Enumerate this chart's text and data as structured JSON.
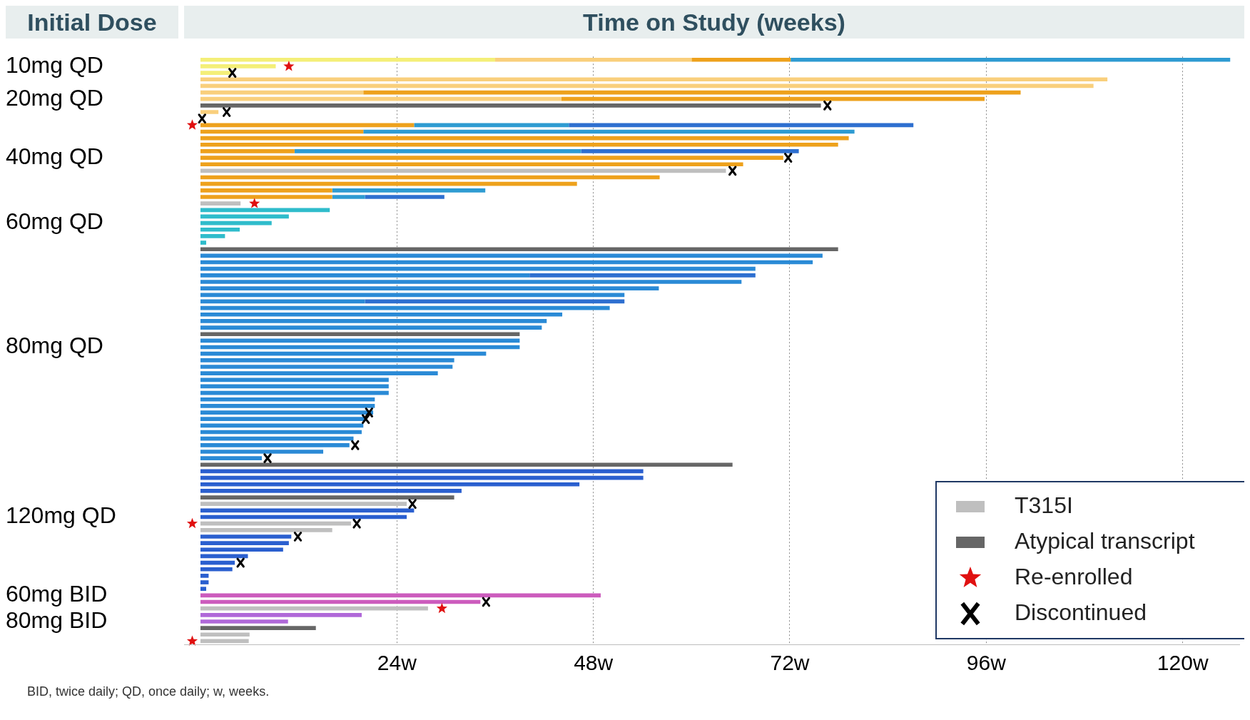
{
  "chart_data": {
    "type": "bar",
    "orientation": "horizontal",
    "stacked": true,
    "xlabel": "Time on Study (weeks)",
    "ylabel": "Initial Dose",
    "annotations": [
      "BID, twice daily; QD, once daily; w, weeks."
    ],
    "categories": [
      null,
      "10mg QD",
      null,
      null,
      null,
      null,
      "20mg QD",
      null,
      null,
      null,
      null,
      null,
      null,
      null,
      null,
      "40mg QD",
      null,
      null,
      null,
      null,
      null,
      null,
      null,
      null,
      null,
      "60mg QD",
      null,
      null,
      null,
      null,
      null,
      null,
      null,
      null,
      null,
      null,
      null,
      null,
      null,
      null,
      null,
      null,
      null,
      null,
      "80mg QD",
      null,
      null,
      null,
      null,
      null,
      null,
      null,
      null,
      null,
      null,
      null,
      null,
      null,
      null,
      null,
      null,
      null,
      null,
      null,
      null,
      null,
      null,
      null,
      null,
      null,
      "120mg QD",
      null,
      null,
      null,
      null,
      null,
      null,
      null,
      null,
      null,
      null,
      null,
      "60mg BID",
      null,
      null,
      null,
      "80mg BID",
      null,
      null,
      null
    ],
    "xlim": [
      -2,
      127
    ],
    "xticks": [
      {
        "value": 24,
        "label": "24w"
      },
      {
        "value": 48,
        "label": "48w"
      },
      {
        "value": 72,
        "label": "72w"
      },
      {
        "value": 96,
        "label": "96w"
      },
      {
        "value": 120,
        "label": "120w"
      }
    ],
    "grid": "x",
    "legend": "bottom right",
    "series": [
      {
        "name": "T315I",
        "color": "#bfbfbf",
        "values": [
          null,
          null,
          null,
          null,
          null,
          null,
          null,
          null,
          null,
          null,
          null,
          null,
          null,
          null,
          null,
          null,
          null,
          64.2,
          null,
          null,
          null,
          null,
          4.9,
          null,
          null,
          null,
          null,
          null,
          null,
          null,
          null,
          null,
          null,
          null,
          null,
          null,
          null,
          null,
          null,
          null,
          null,
          null,
          null,
          null,
          null,
          null,
          null,
          null,
          null,
          null,
          null,
          null,
          null,
          null,
          null,
          null,
          null,
          null,
          null,
          null,
          null,
          null,
          null,
          null,
          null,
          null,
          null,
          null,
          25.2,
          null,
          null,
          18.4,
          16.1,
          null,
          null,
          null,
          null,
          null,
          null,
          null,
          null,
          null,
          null,
          null,
          27.8,
          null,
          null,
          null,
          6,
          5.9
        ]
      },
      {
        "name": "Atypical transcript",
        "color": "#666666",
        "values": [
          null,
          null,
          null,
          null,
          null,
          null,
          null,
          75.8,
          null,
          null,
          null,
          null,
          null,
          null,
          null,
          null,
          null,
          null,
          null,
          null,
          null,
          null,
          null,
          null,
          null,
          null,
          null,
          null,
          null,
          77.9,
          null,
          null,
          null,
          null,
          null,
          null,
          null,
          null,
          null,
          null,
          null,
          null,
          39,
          null,
          null,
          null,
          null,
          null,
          null,
          null,
          null,
          null,
          null,
          null,
          null,
          null,
          null,
          null,
          null,
          null,
          null,
          null,
          65,
          null,
          null,
          null,
          null,
          31,
          null,
          null,
          null,
          null,
          null,
          null,
          null,
          null,
          null,
          null,
          null,
          null,
          null,
          null,
          null,
          null,
          null,
          null,
          null,
          14.1,
          null,
          null
        ]
      },
      {
        "values": [
          36,
          9.2,
          3.7,
          110.8,
          109.1,
          19.9,
          44.1,
          null,
          2.2,
          null,
          26.1,
          19.9,
          79.2,
          77.9,
          11.5,
          71.2,
          66.3,
          null,
          56.1,
          46,
          16.1,
          16.1,
          null,
          15.8,
          10.8,
          8.7,
          4.8,
          3.0,
          0.7,
          null,
          76,
          74.8,
          67.8,
          40.2,
          66.1,
          56,
          51.8,
          20.1,
          50,
          44.2,
          42.3,
          41.7,
          null,
          39,
          39,
          34.9,
          31,
          30.8,
          29,
          23,
          23,
          23,
          21.3,
          21.3,
          21.1,
          20.2,
          19.9,
          19.7,
          18.7,
          18.2,
          15,
          7.5,
          null,
          54.1,
          54.1,
          46.3,
          31.9,
          null,
          null,
          26.1,
          25.2,
          null,
          null,
          11.1,
          10.8,
          10.1,
          5.8,
          4.2,
          3.9,
          1,
          1,
          0.7,
          48.9,
          34.2,
          null,
          19.7,
          10.7,
          null,
          null,
          null
        ],
        "colors": [
          "#f4ef78",
          "#f4ef78",
          "#f4ef78",
          "#f9cf7c",
          "#f9cf7c",
          "#f9cf7c",
          "#f9cf7c",
          null,
          "#f9cf7c",
          null,
          "#eea11c",
          "#eea11c",
          "#eea11c",
          "#eea11c",
          "#eea11c",
          "#eea11c",
          "#eea11c",
          null,
          "#eea11c",
          "#eea11c",
          "#eea11c",
          "#eea11c",
          null,
          "#2fbccb",
          "#2fbccb",
          "#2fbccb",
          "#2fbccb",
          "#2fbccb",
          "#2fbccb",
          null,
          "#2a8ad6",
          "#2a8ad6",
          "#2a8ad6",
          "#2a8ad6",
          "#2a8ad6",
          "#2a8ad6",
          "#2a8ad6",
          "#2a8ad6",
          "#2a8ad6",
          "#2a8ad6",
          "#2a8ad6",
          "#2a8ad6",
          null,
          "#2a8ad6",
          "#2a8ad6",
          "#2a8ad6",
          "#2a8ad6",
          "#2a8ad6",
          "#2a8ad6",
          "#2a8ad6",
          "#2a8ad6",
          "#2a8ad6",
          "#2a8ad6",
          "#2a8ad6",
          "#2a8ad6",
          "#2a8ad6",
          "#2a8ad6",
          "#2a8ad6",
          "#2a8ad6",
          "#2a8ad6",
          "#2a8ad6",
          "#2a8ad6",
          null,
          "#2a5fcf",
          "#2a5fcf",
          "#2a5fcf",
          "#2a5fcf",
          null,
          null,
          "#2a5fcf",
          "#2a5fcf",
          null,
          null,
          "#2a5fcf",
          "#2a5fcf",
          "#2a5fcf",
          "#2a5fcf",
          "#2a5fcf",
          "#2a5fcf",
          "#2a5fcf",
          "#2a5fcf",
          "#2a5fcf",
          "#cc5cbd",
          "#cc5cbd",
          null,
          "#b068d8",
          "#b068d8",
          null,
          null,
          null
        ]
      },
      {
        "values": [
          24,
          null,
          null,
          null,
          null,
          80.3,
          51.7,
          null,
          null,
          null,
          18.9,
          60,
          null,
          null,
          35,
          null,
          null,
          null,
          null,
          null,
          18.7,
          4,
          null,
          null,
          null,
          null,
          null,
          null,
          null,
          null,
          null,
          null,
          null,
          27.6,
          null,
          null,
          null,
          31.7,
          null,
          null,
          null,
          null,
          null,
          null,
          null,
          null,
          null,
          null,
          null,
          null,
          null,
          null,
          null,
          null,
          null,
          null,
          null,
          null,
          null,
          null,
          null,
          null,
          null,
          null,
          null,
          null,
          null,
          null,
          null,
          null,
          null,
          null,
          null,
          null,
          null,
          null,
          null,
          null,
          null,
          null,
          null,
          null,
          null,
          null,
          null,
          null,
          null,
          null,
          null,
          null
        ],
        "colors": [
          "#f9cf7c",
          null,
          null,
          null,
          null,
          "#eea11c",
          "#eea11c",
          null,
          null,
          null,
          "#2e9bd2",
          "#2e9bd2",
          null,
          null,
          "#2e9bd2",
          null,
          null,
          null,
          null,
          null,
          "#2e9bd2",
          "#2e9bd2",
          null,
          null,
          null,
          null,
          null,
          null,
          null,
          null,
          null,
          null,
          null,
          "#2e6fd0",
          null,
          null,
          null,
          "#2e6fd0",
          null,
          null,
          null,
          null,
          null,
          null,
          null,
          null,
          null,
          null,
          null,
          null,
          null,
          null,
          null,
          null,
          null,
          null,
          null,
          null,
          null,
          null,
          null,
          null,
          null,
          null,
          null,
          null,
          null,
          null,
          null,
          null,
          null,
          null,
          null,
          null,
          null,
          null,
          null,
          null,
          null,
          null,
          null,
          null,
          null,
          null,
          null,
          null,
          null,
          null,
          null,
          null
        ]
      },
      {
        "values": [
          12.1,
          null,
          null,
          null,
          null,
          null,
          null,
          null,
          null,
          null,
          42.1,
          null,
          null,
          null,
          26.6,
          null,
          null,
          null,
          null,
          null,
          null,
          9.7,
          null,
          null,
          null,
          null,
          null,
          null,
          null,
          null,
          null,
          null,
          null,
          null,
          null,
          null,
          null,
          null,
          null,
          null,
          null,
          null,
          null,
          null,
          null,
          null,
          null,
          null,
          null,
          null,
          null,
          null,
          null,
          null,
          null,
          null,
          null,
          null,
          null,
          null,
          null,
          null,
          null,
          null,
          null,
          null,
          null,
          null,
          null,
          null,
          null,
          null,
          null,
          null,
          null,
          null,
          null,
          null,
          null,
          null,
          null,
          null,
          null,
          null,
          null,
          null,
          null,
          null,
          null,
          null
        ],
        "colors": [
          "#eea11c",
          null,
          null,
          null,
          null,
          null,
          null,
          null,
          null,
          null,
          "#2e6fd0",
          null,
          null,
          null,
          "#2e6fd0",
          null,
          null,
          null,
          null,
          null,
          null,
          "#2e6fd0",
          null,
          null,
          null,
          null,
          null,
          null,
          null,
          null,
          null,
          null,
          null,
          null,
          null,
          null,
          null,
          null,
          null,
          null,
          null,
          null,
          null,
          null,
          null,
          null,
          null,
          null,
          null,
          null,
          null,
          null,
          null,
          null,
          null,
          null,
          null,
          null,
          null,
          null,
          null,
          null,
          null,
          null,
          null,
          null,
          null,
          null,
          null,
          null,
          null,
          null,
          null,
          null,
          null,
          null,
          null,
          null,
          null,
          null,
          null,
          null,
          null,
          null,
          null,
          null,
          null,
          null,
          null,
          null
        ]
      },
      {
        "values": [
          53.7,
          null,
          null,
          null,
          null,
          null,
          null,
          null,
          null,
          null,
          null,
          null,
          null,
          null,
          null,
          null,
          null,
          null,
          null,
          null,
          null,
          null,
          null,
          null,
          null,
          null,
          null,
          null,
          null,
          null,
          null,
          null,
          null,
          null,
          null,
          null,
          null,
          null,
          null,
          null,
          null,
          null,
          null,
          null,
          null,
          null,
          null,
          null,
          null,
          null,
          null,
          null,
          null,
          null,
          null,
          null,
          null,
          null,
          null,
          null,
          null,
          null,
          null,
          null,
          null,
          null,
          null,
          null,
          null,
          null,
          null,
          null,
          null,
          null,
          null,
          null,
          null,
          null,
          null,
          null,
          null,
          null,
          null,
          null,
          null,
          null,
          null,
          null,
          null,
          null
        ],
        "colors": [
          "#2e9bd2",
          null,
          null,
          null,
          null,
          null,
          null,
          null,
          null,
          null,
          null,
          null,
          null,
          null,
          null,
          null,
          null,
          null,
          null,
          null,
          null,
          null,
          null,
          null,
          null,
          null,
          null,
          null,
          null,
          null,
          null,
          null,
          null,
          null,
          null,
          null,
          null,
          null,
          null,
          null,
          null,
          null,
          null,
          null,
          null,
          null,
          null,
          null,
          null,
          null,
          null,
          null,
          null,
          null,
          null,
          null,
          null,
          null,
          null,
          null,
          null,
          null,
          null,
          null,
          null,
          null,
          null,
          null,
          null,
          null,
          null,
          null,
          null,
          null,
          null,
          null,
          null,
          null,
          null,
          null,
          null,
          null,
          null,
          null,
          null,
          null,
          null,
          null,
          null,
          null
        ]
      },
      {
        "name": "Re-enrolled",
        "type": "scatter",
        "marker": "star",
        "color": "#e01010",
        "values": [
          null,
          10.8,
          null,
          null,
          null,
          null,
          null,
          null,
          null,
          null,
          -1,
          null,
          null,
          null,
          null,
          null,
          null,
          null,
          null,
          null,
          null,
          null,
          6.6,
          null,
          null,
          null,
          null,
          null,
          null,
          null,
          null,
          null,
          null,
          null,
          null,
          null,
          null,
          null,
          null,
          null,
          null,
          null,
          null,
          null,
          null,
          null,
          null,
          null,
          null,
          null,
          null,
          null,
          null,
          null,
          null,
          null,
          null,
          null,
          null,
          null,
          null,
          null,
          null,
          null,
          null,
          null,
          null,
          null,
          null,
          null,
          null,
          -1,
          null,
          null,
          null,
          null,
          null,
          null,
          null,
          null,
          null,
          null,
          null,
          null,
          29.5,
          null,
          null,
          null,
          null,
          -1
        ]
      },
      {
        "name": "Discontinued",
        "type": "scatter",
        "marker": "cross",
        "color": "#000000",
        "values": [
          null,
          null,
          3.9,
          null,
          null,
          null,
          null,
          76.6,
          3.2,
          0.2,
          null,
          null,
          null,
          null,
          null,
          71.8,
          null,
          65,
          null,
          null,
          null,
          null,
          null,
          null,
          null,
          null,
          null,
          null,
          null,
          null,
          null,
          null,
          null,
          null,
          null,
          null,
          null,
          null,
          null,
          null,
          null,
          null,
          null,
          null,
          null,
          null,
          null,
          null,
          null,
          null,
          null,
          null,
          null,
          null,
          20.6,
          20.2,
          null,
          null,
          null,
          18.9,
          null,
          8.2,
          null,
          null,
          null,
          null,
          null,
          null,
          25.9,
          null,
          null,
          19.1,
          null,
          11.9,
          null,
          null,
          null,
          4.9,
          null,
          null,
          null,
          null,
          null,
          34.9,
          null,
          null,
          null,
          null,
          null,
          null
        ]
      }
    ]
  }
}
